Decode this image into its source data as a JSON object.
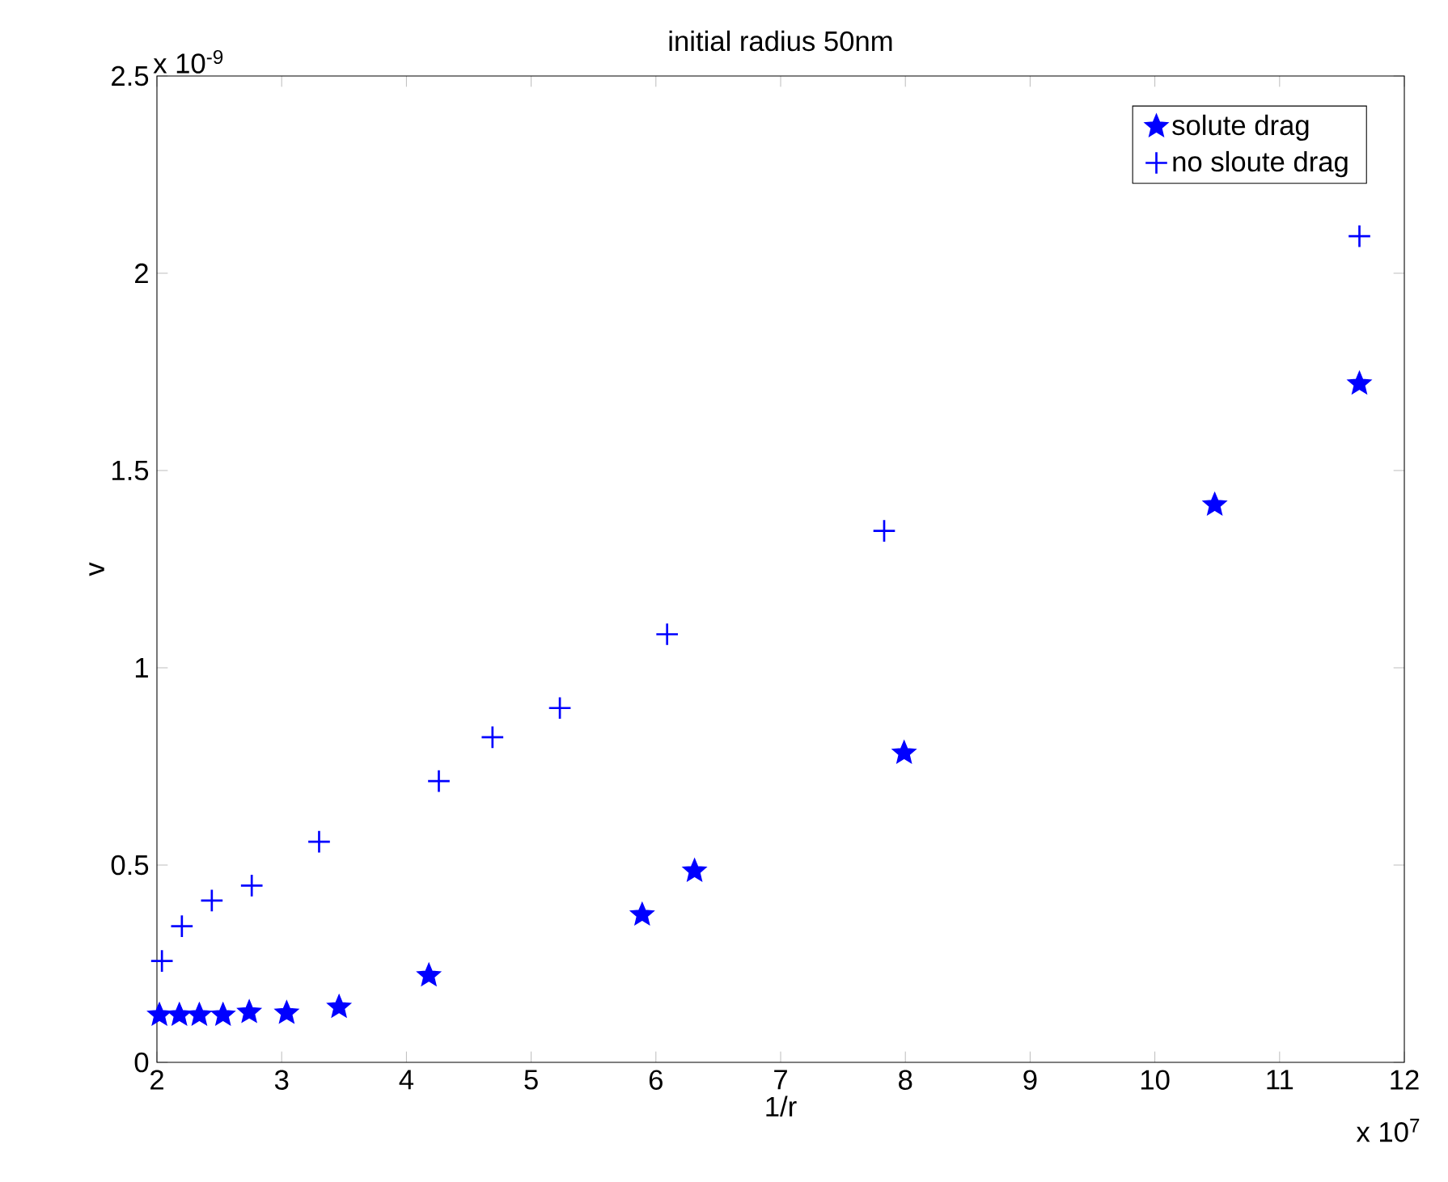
{
  "chart_data": {
    "type": "scatter",
    "title": "initial radius 50nm",
    "xlabel": "1/r",
    "ylabel": "v",
    "annotations": [
      "x 10$^{-9}$",
      "x 10$^{7}$"
    ],
    "series": [
      {
        "name": "solute drag",
        "color": "#0000ff",
        "marker": "star",
        "x": [
          2.02,
          2.18,
          2.34,
          2.53,
          2.74,
          3.04,
          3.46,
          4.18,
          5.89,
          6.31,
          7.99,
          10.48,
          11.64
        ],
        "values": [
          0.12,
          0.12,
          0.12,
          0.12,
          0.127,
          0.125,
          0.14,
          0.22,
          0.374,
          0.485,
          0.784,
          1.413,
          1.72
        ]
      },
      {
        "name": "no sloute drag",
        "color": "#0000ff",
        "marker": "cross",
        "x": [
          2.04,
          2.2,
          2.44,
          2.76,
          3.3,
          4.26,
          4.69,
          5.23,
          6.09,
          7.83,
          11.64
        ],
        "values": [
          0.257,
          0.345,
          0.41,
          0.448,
          0.559,
          0.713,
          0.824,
          0.898,
          1.085,
          1.347,
          2.094
        ]
      }
    ],
    "xlim": [
      2,
      12
    ],
    "ylim": [
      0,
      2.5
    ],
    "xticks": [
      2,
      3,
      4,
      5,
      6,
      7,
      8,
      9,
      10,
      11,
      12
    ],
    "yticks": [
      0,
      0.5,
      1,
      1.5,
      2,
      2.5
    ],
    "grid": false,
    "legend": "top right"
  }
}
